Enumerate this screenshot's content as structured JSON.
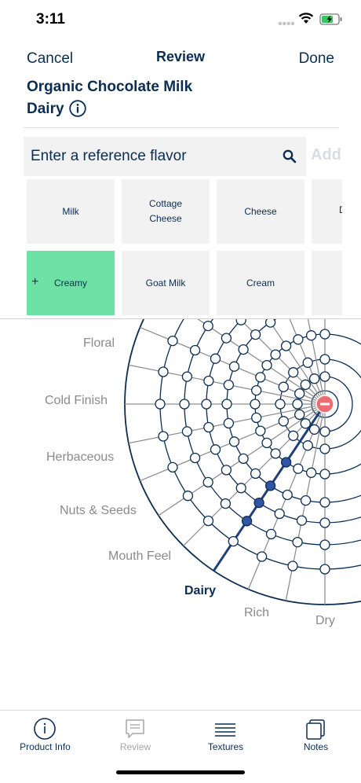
{
  "status_bar": {
    "time": "3:11"
  },
  "nav": {
    "cancel": "Cancel",
    "title": "Review",
    "done": "Done"
  },
  "product": {
    "name": "Organic Chocolate Milk",
    "category": "Dairy"
  },
  "search": {
    "placeholder": "Enter a reference flavor",
    "add_label": "Add"
  },
  "tiles": [
    {
      "label": "Milk",
      "selected": false
    },
    {
      "label": "Cottage\nCheese",
      "selected": false
    },
    {
      "label": "Cheese",
      "selected": false
    },
    {
      "label": "D",
      "selected": false
    },
    {
      "label": "Creamy",
      "selected": true,
      "prefix": "+"
    },
    {
      "label": "Goat Milk",
      "selected": false
    },
    {
      "label": "Cream",
      "selected": false
    },
    {
      "label": "",
      "selected": false
    }
  ],
  "wheel": {
    "labels": [
      "Floral",
      "Cold Finish",
      "Herbaceous",
      "Nuts & Seeds",
      "Mouth Feel",
      "Dairy",
      "Rich",
      "Dry"
    ],
    "active_label": "Dairy",
    "colors": {
      "line": "#0b2d52",
      "spoke": "#8f8f8f",
      "selected_node": "#2f55a4",
      "center": "#ef6b73"
    }
  },
  "tabs": [
    {
      "label": "Product Info",
      "icon": "info-circle-icon",
      "enabled": true
    },
    {
      "label": "Review",
      "icon": "chat-bubble-icon",
      "enabled": false
    },
    {
      "label": "Textures",
      "icon": "lines-icon",
      "enabled": true
    },
    {
      "label": "Notes",
      "icon": "notes-icon",
      "enabled": true
    }
  ]
}
